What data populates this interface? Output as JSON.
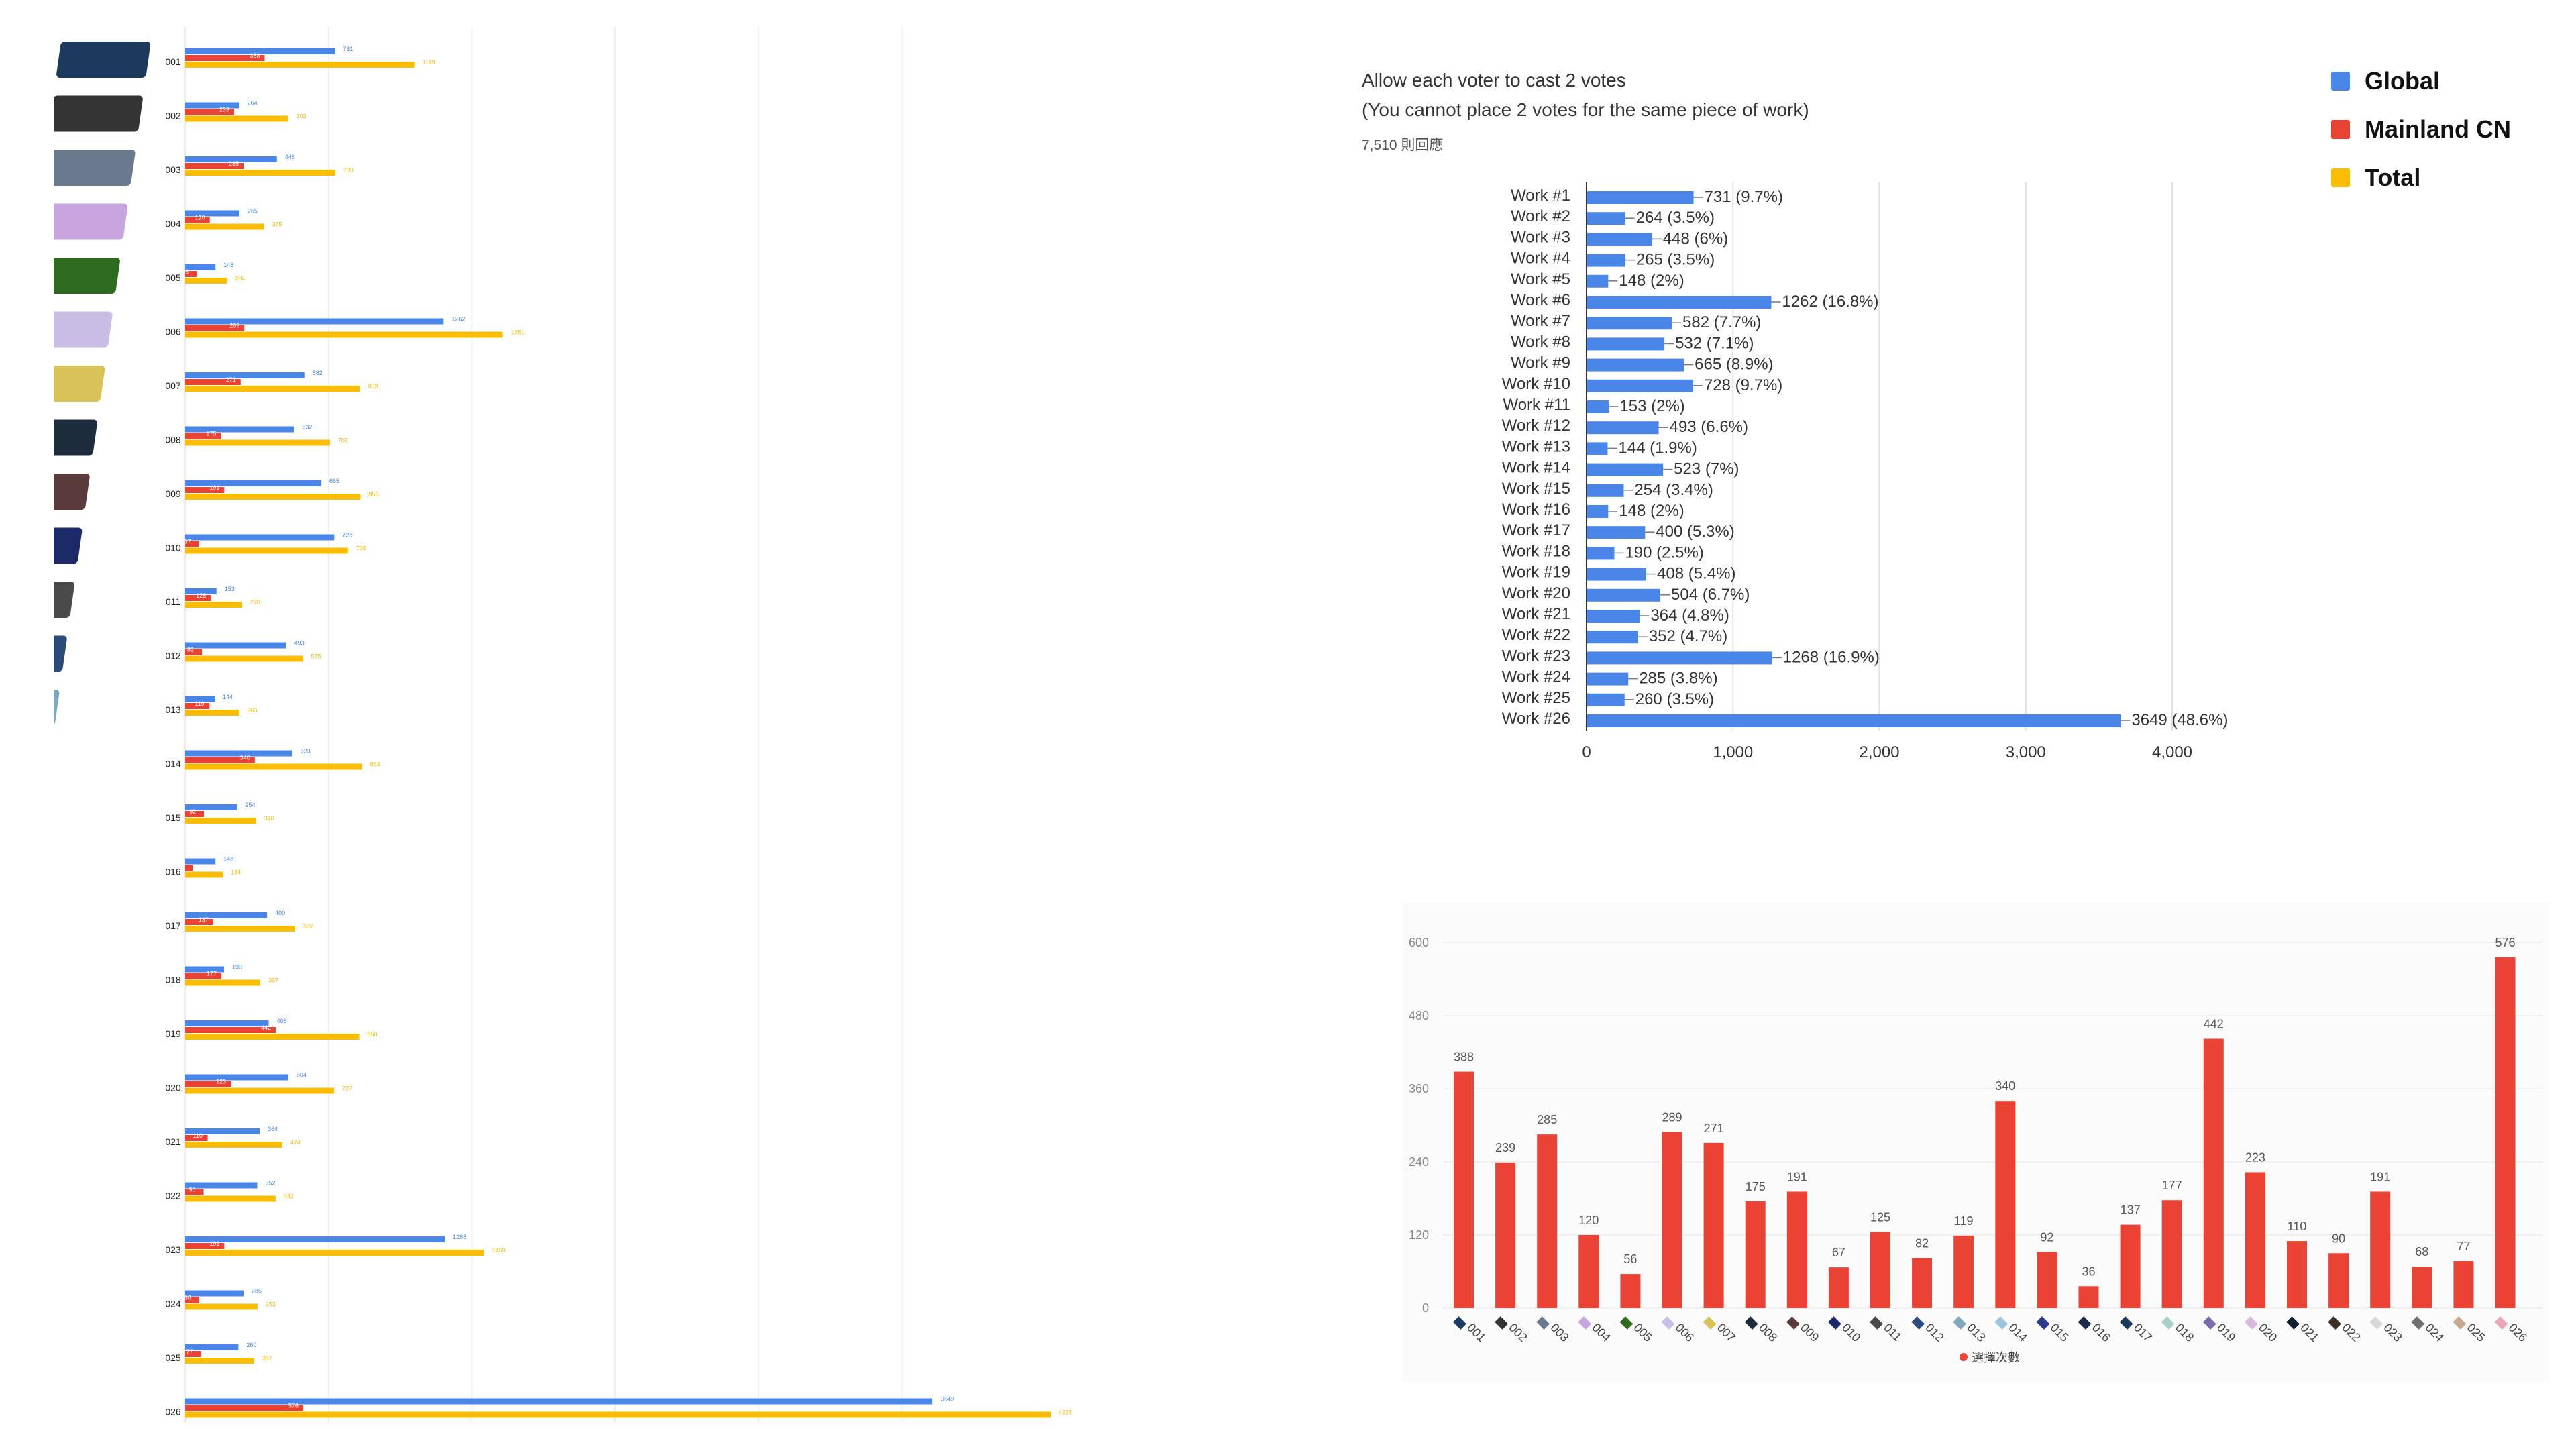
{
  "chart_data": [
    {
      "type": "bar",
      "categories": [
        "001",
        "002",
        "003",
        "004",
        "005",
        "006",
        "007",
        "008",
        "009",
        "010",
        "011",
        "012",
        "013",
        "014",
        "015",
        "016",
        "017",
        "018",
        "019",
        "020",
        "021",
        "022",
        "023",
        "024",
        "025",
        "026"
      ],
      "series": [
        {
          "name": "Global",
          "color": "#4a86e8",
          "values": [
            731,
            264,
            448,
            265,
            148,
            1262,
            582,
            532,
            665,
            728,
            153,
            493,
            144,
            523,
            254,
            148,
            400,
            190,
            408,
            504,
            364,
            352,
            1268,
            285,
            260,
            3649
          ]
        },
        {
          "name": "Mainland CN",
          "color": "#ea4335",
          "values": [
            388,
            239,
            285,
            120,
            56,
            289,
            271,
            175,
            191,
            67,
            125,
            82,
            119,
            340,
            92,
            36,
            137,
            177,
            442,
            223,
            110,
            90,
            191,
            68,
            77,
            576
          ]
        },
        {
          "name": "Total",
          "color": "#fbbc04",
          "values": [
            1119,
            503,
            733,
            385,
            204,
            1551,
            853,
            707,
            856,
            795,
            278,
            575,
            263,
            863,
            346,
            184,
            537,
            367,
            850,
            727,
            474,
            442,
            1459,
            353,
            337,
            4225
          ]
        }
      ],
      "legend": "right"
    },
    {
      "type": "bar",
      "title": "Allow each voter to cast 2 votes",
      "subtitle": "(You cannot place 2 votes for the same piece of work)",
      "responses": "7,510 則回應",
      "categories": [
        "Work #1",
        "Work #2",
        "Work #3",
        "Work #4",
        "Work #5",
        "Work #6",
        "Work #7",
        "Work #8",
        "Work #9",
        "Work #10",
        "Work #11",
        "Work #12",
        "Work #13",
        "Work #14",
        "Work #15",
        "Work #16",
        "Work #17",
        "Work #18",
        "Work #19",
        "Work #20",
        "Work #21",
        "Work #22",
        "Work #23",
        "Work #24",
        "Work #25",
        "Work #26"
      ],
      "values": [
        731,
        264,
        448,
        265,
        148,
        1262,
        582,
        532,
        665,
        728,
        153,
        493,
        144,
        523,
        254,
        148,
        400,
        190,
        408,
        504,
        364,
        352,
        1268,
        285,
        260,
        3649
      ],
      "value_labels": [
        "731 (9.7%)",
        "264 (3.5%)",
        "448 (6%)",
        "265 (3.5%)",
        "148 (2%)",
        "1262 (16.8%)",
        "582 (7.7%)",
        "532 (7.1%)",
        "665 (8.9%)",
        "728 (9.7%)",
        "153 (2%)",
        "493 (6.6%)",
        "144 (1.9%)",
        "523 (7%)",
        "254 (3.4%)",
        "148 (2%)",
        "400 (5.3%)",
        "190 (2.5%)",
        "408 (5.4%)",
        "504 (6.7%)",
        "364 (4.8%)",
        "352 (4.7%)",
        "1268 (16.9%)",
        "285 (3.8%)",
        "260 (3.5%)",
        "3649 (48.6%)"
      ],
      "xlim": [
        0,
        4000
      ],
      "xticks": [
        "0",
        "1,000",
        "2,000",
        "3,000",
        "4,000"
      ],
      "color": "#4a86e8",
      "grid": true
    },
    {
      "type": "bar",
      "categories": [
        "001",
        "002",
        "003",
        "004",
        "005",
        "006",
        "007",
        "008",
        "009",
        "010",
        "011",
        "012",
        "013",
        "014",
        "015",
        "016",
        "017",
        "018",
        "019",
        "020",
        "021",
        "022",
        "023",
        "024",
        "025",
        "026"
      ],
      "values": [
        388,
        239,
        285,
        120,
        56,
        289,
        271,
        175,
        191,
        67,
        125,
        82,
        119,
        340,
        92,
        36,
        137,
        177,
        442,
        223,
        110,
        90,
        191,
        68,
        77,
        576
      ],
      "ylim": [
        0,
        600
      ],
      "yticks": [
        "0",
        "120",
        "240",
        "360",
        "480",
        "600"
      ],
      "legend": "選擇次數",
      "color": "#ea4335",
      "grid": true
    }
  ],
  "legend": {
    "items": [
      {
        "label": "Global",
        "color": "#4a86e8"
      },
      {
        "label": "Mainland CN",
        "color": "#ea4335"
      },
      {
        "label": "Total",
        "color": "#fbbc04"
      }
    ]
  },
  "thumbnails": [
    "#1b3a5c",
    "#333333",
    "#6a7a8c",
    "#c7a6e0",
    "#2e6b1f",
    "#c9bde6",
    "#d9c25a",
    "#1d2c3c",
    "#5a3a3a",
    "#1d2a6a",
    "#4a4a4a",
    "#2a4a7a",
    "#7fa8c0",
    "#9cc4dc",
    "#2a3a8a",
    "#1a2a4a",
    "#1a3a5a",
    "#a8d0c8",
    "#7a6aa8",
    "#d8b8e0",
    "#102030",
    "#3a3028",
    "#d8d8d8",
    "#707070",
    "#c8a890",
    "#e8a8b8"
  ]
}
